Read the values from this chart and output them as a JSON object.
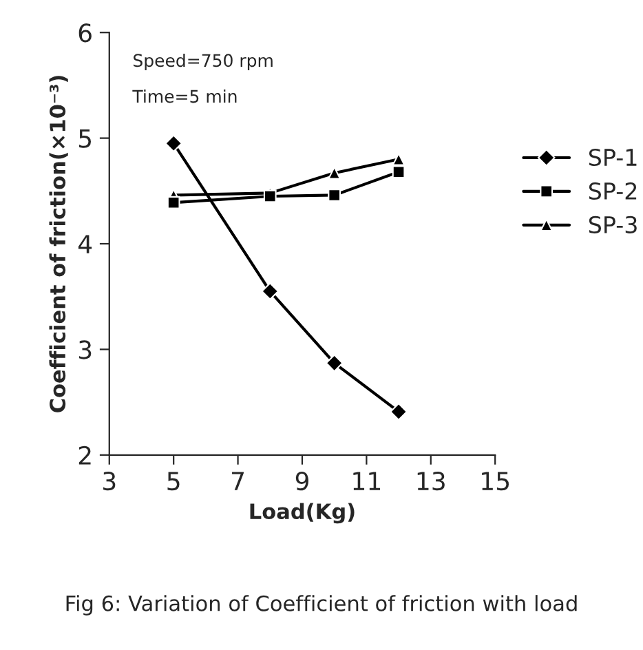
{
  "chart_data": {
    "type": "line",
    "xlabel": "Load(Kg)",
    "ylabel": "Coefficient of friction(×10⁻³)",
    "x": [
      5,
      8,
      10,
      12
    ],
    "series": [
      {
        "name": "SP-1",
        "color": "#000000",
        "marker": "diamond",
        "values": [
          4.95,
          3.55,
          2.87,
          2.41
        ]
      },
      {
        "name": "SP-2",
        "color": "#000000",
        "marker": "square",
        "values": [
          4.39,
          4.45,
          4.46,
          4.68
        ]
      },
      {
        "name": "SP-3",
        "color": "#000000",
        "marker": "triangle",
        "values": [
          4.46,
          4.48,
          4.67,
          4.8
        ]
      }
    ],
    "xlim": [
      3,
      15
    ],
    "xticks": [
      3,
      5,
      7,
      9,
      11,
      13,
      15
    ],
    "ylim": [
      2,
      6
    ],
    "yticks": [
      2,
      3,
      4,
      5,
      6
    ],
    "grid": false,
    "legend": "right",
    "line_style": "solid",
    "annotations": [
      "Speed=750 rpm",
      "Time=5 min",
      "Fig 6: Variation of Coefficient of friction with load"
    ]
  }
}
